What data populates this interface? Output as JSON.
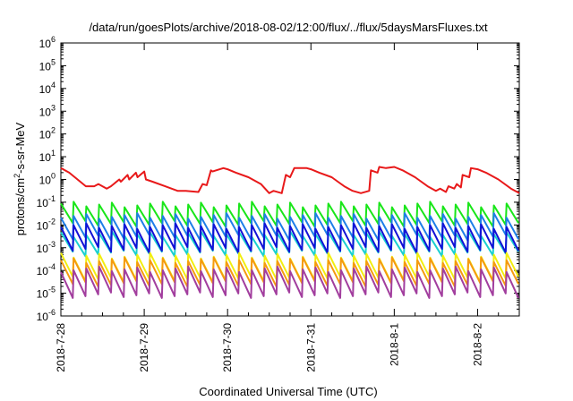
{
  "chart_data": {
    "type": "line",
    "title": "/data/run/goesPlots/archive/2018-08-02/12:00/flux/../flux/5daysMarsFluxes.txt",
    "xlabel": "Coordinated Universal Time (UTC)",
    "ylabel": {
      "prefix": "protons/cm",
      "sup": "2",
      "suffix": "-s-sr-MeV"
    },
    "yscale": "log",
    "ylim_exp": [
      -6,
      6
    ],
    "y_ticks": [
      {
        "base": "10",
        "exp": "-6"
      },
      {
        "base": "10",
        "exp": "-5"
      },
      {
        "base": "10",
        "exp": "-4"
      },
      {
        "base": "10",
        "exp": "-3"
      },
      {
        "base": "10",
        "exp": "-2"
      },
      {
        "base": "10",
        "exp": "-1"
      },
      {
        "base": "10",
        "exp": "0"
      },
      {
        "base": "10",
        "exp": "1"
      },
      {
        "base": "10",
        "exp": "2"
      },
      {
        "base": "10",
        "exp": "3"
      },
      {
        "base": "10",
        "exp": "4"
      },
      {
        "base": "10",
        "exp": "5"
      },
      {
        "base": "10",
        "exp": "6"
      }
    ],
    "xlim_days": [
      0,
      5.5
    ],
    "x_ticks": [
      {
        "label": "2018-7-28",
        "day": 0
      },
      {
        "label": "2018-7-29",
        "day": 1
      },
      {
        "label": "2018-7-30",
        "day": 2
      },
      {
        "label": "2018-7-31",
        "day": 3
      },
      {
        "label": "2018-8-1",
        "day": 4
      },
      {
        "label": "2018-8-2",
        "day": 5
      }
    ],
    "grid": false,
    "legend": "none",
    "series": [
      {
        "color": "#e8191a",
        "x_days": [
          0,
          0.1,
          0.2,
          0.3,
          0.4,
          0.45,
          0.55,
          0.6,
          0.7,
          0.72,
          0.8,
          0.82,
          0.9,
          0.92,
          1.0,
          1.02,
          1.1,
          1.25,
          1.4,
          1.5,
          1.65,
          1.7,
          1.75,
          1.8,
          1.82,
          1.95,
          2.0,
          2.1,
          2.25,
          2.4,
          2.5,
          2.55,
          2.65,
          2.7,
          2.75,
          2.8,
          2.95,
          3.0,
          3.1,
          3.25,
          3.4,
          3.5,
          3.6,
          3.7,
          3.72,
          3.8,
          3.82,
          3.9,
          4.0,
          4.1,
          4.25,
          4.4,
          4.5,
          4.55,
          4.62,
          4.65,
          4.72,
          4.75,
          4.8,
          4.82,
          4.9,
          4.92,
          5.0,
          5.1,
          5.25,
          5.4,
          5.5
        ],
        "y_log10": [
          0.5,
          0.3,
          0.0,
          -0.3,
          -0.3,
          -0.2,
          -0.4,
          -0.3,
          0.0,
          -0.1,
          0.2,
          0.0,
          0.3,
          0.1,
          0.35,
          0.0,
          -0.1,
          -0.3,
          -0.5,
          -0.5,
          -0.55,
          -0.2,
          -0.25,
          0.4,
          0.35,
          0.5,
          0.45,
          0.3,
          0.1,
          -0.2,
          -0.6,
          -0.5,
          -0.6,
          0.2,
          0.1,
          0.5,
          0.5,
          0.45,
          0.3,
          0.1,
          -0.3,
          -0.5,
          -0.6,
          -0.5,
          0.4,
          0.3,
          0.55,
          0.5,
          0.55,
          0.4,
          0.1,
          -0.3,
          -0.5,
          -0.4,
          -0.55,
          -0.3,
          -0.4,
          -0.2,
          -0.35,
          0.2,
          0.1,
          0.5,
          0.45,
          0.3,
          0.0,
          -0.4,
          -0.6
        ]
      },
      {
        "color": "#19e619",
        "center": -1.55,
        "amp": 0.45,
        "cycles": 36
      },
      {
        "color": "#1e7ee8",
        "center": -2.1,
        "amp": 0.5,
        "cycles": 36
      },
      {
        "color": "#19d0d0",
        "center": -2.85,
        "amp": 0.45,
        "cycles": 36
      },
      {
        "color": "#1212d6",
        "center": -2.6,
        "amp": 0.55,
        "cycles": 36
      },
      {
        "color": "#f2ee10",
        "center": -3.9,
        "amp": 0.55,
        "cycles": 36
      },
      {
        "color": "#f59a10",
        "center": -4.1,
        "amp": 0.55,
        "cycles": 36
      },
      {
        "color": "#a23e9e",
        "center": -4.55,
        "amp": 0.6,
        "cycles": 36
      }
    ]
  }
}
